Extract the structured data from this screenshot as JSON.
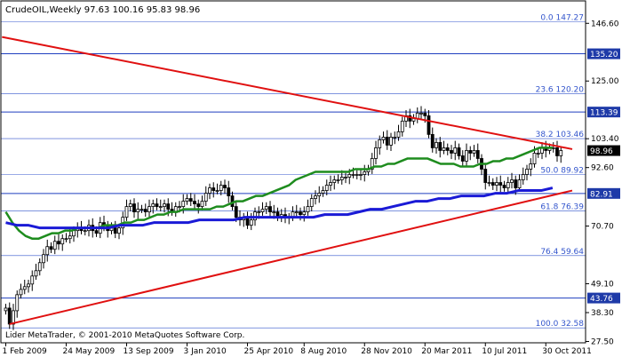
{
  "chart_data": {
    "type": "candlestick",
    "symbol_line": "CrudeOIL,Weekly  97.63 100.16 95.83 98.96",
    "copyright": "Lider MetaTrader, © 2001-2010 MetaQuotes Software Corp.",
    "ylim": [
      27.0,
      155.0
    ],
    "y_ticks": [
      146.6,
      125.0,
      103.4,
      92.6,
      70.7,
      49.1,
      38.3,
      27.5
    ],
    "x_tick_labels": [
      "1 Feb 2009",
      "24 May 2009",
      "13 Sep 2009",
      "3 Jan 2010",
      "25 Apr 2010",
      "8 Aug 2010",
      "28 Nov 2010",
      "20 Mar 2011",
      "10 Jul 2011",
      "30 Oct 2011"
    ],
    "x_tick_weeks": [
      0,
      16,
      32,
      48,
      64,
      79,
      95,
      111,
      127,
      143
    ],
    "horizontal_levels": [
      {
        "value": 135.2,
        "label": "135.20",
        "boxed": true
      },
      {
        "value": 113.39,
        "label": "113.39",
        "boxed": true
      },
      {
        "value": 82.91,
        "label": "82.91",
        "boxed": true
      },
      {
        "value": 43.76,
        "label": "43.76",
        "boxed": true
      }
    ],
    "price_badge": {
      "value": 98.96,
      "label": "98.96"
    },
    "fibonacci": [
      {
        "value": 147.27,
        "label": "0.0 147.27"
      },
      {
        "value": 120.2,
        "label": "23.6 120.20"
      },
      {
        "value": 103.46,
        "label": "38.2 103.46"
      },
      {
        "value": 89.92,
        "label": "50.0 89.92"
      },
      {
        "value": 76.39,
        "label": "61.8 76.39"
      },
      {
        "value": 59.64,
        "label": "76.4 59.64"
      },
      {
        "value": 32.58,
        "label": "100.0 32.58"
      }
    ],
    "close_series": [
      40,
      34,
      39,
      45,
      47,
      48,
      49,
      52,
      54,
      57,
      60,
      63,
      62,
      65,
      64,
      66,
      66,
      67,
      69,
      70,
      69,
      69,
      71,
      69,
      68,
      72,
      71,
      69,
      70,
      68,
      70,
      74,
      78,
      79,
      76,
      77,
      77,
      76,
      78,
      79,
      78,
      78,
      79,
      77,
      76,
      78,
      78,
      80,
      81,
      80,
      79,
      78,
      80,
      83,
      85,
      84,
      84,
      86,
      85,
      82,
      78,
      74,
      73,
      74,
      71,
      73,
      76,
      76,
      77,
      78,
      76,
      76,
      74,
      75,
      74,
      74,
      76,
      76,
      75,
      76,
      78,
      81,
      82,
      83,
      84,
      86,
      87,
      88,
      88,
      89,
      89,
      90,
      90,
      90,
      90,
      91,
      92,
      96,
      100,
      103,
      104,
      101,
      104,
      104,
      106,
      110,
      112,
      110,
      111,
      113,
      113,
      112,
      105,
      100,
      102,
      99,
      100,
      99,
      98,
      100,
      97,
      95,
      99,
      98,
      99,
      96,
      92,
      87,
      87,
      86,
      87,
      86,
      85,
      87,
      88,
      85,
      88,
      90,
      92,
      94,
      98,
      98,
      100,
      99,
      100,
      100,
      97,
      99
    ],
    "ma_green_series": [
      76,
      72,
      69,
      67,
      66,
      66,
      67,
      68,
      68,
      69,
      69,
      70,
      70,
      70,
      70,
      71,
      71,
      71,
      72,
      72,
      73,
      73,
      74,
      75,
      75,
      76,
      76,
      77,
      77,
      77,
      77,
      77,
      78,
      78,
      79,
      80,
      80,
      81,
      82,
      82,
      83,
      84,
      85,
      86,
      88,
      89,
      90,
      91,
      91,
      91,
      91,
      91,
      91,
      92,
      92,
      92,
      93,
      93,
      94,
      94,
      95,
      96,
      96,
      96,
      96,
      95,
      94,
      94,
      94,
      93,
      93,
      93,
      94,
      94,
      95,
      95,
      96,
      96,
      97,
      98,
      99,
      100,
      100,
      100
    ],
    "ma_blue_series": [
      72,
      71,
      71,
      70,
      70,
      70,
      70,
      70,
      70,
      70,
      71,
      71,
      71,
      72,
      72,
      72,
      72,
      73,
      73,
      73,
      73,
      74,
      74,
      74,
      74,
      74,
      74,
      74,
      75,
      75,
      75,
      76,
      77,
      77,
      78,
      79,
      80,
      80,
      81,
      81,
      82,
      82,
      82,
      83,
      83,
      84,
      84,
      84,
      85
    ],
    "trendlines": [
      {
        "name": "upper-resistance",
        "from": [
          -1,
          141.5
        ],
        "to": [
          150,
          99.5
        ]
      },
      {
        "name": "lower-support",
        "from": [
          1,
          34.0
        ],
        "to": [
          150,
          84.0
        ]
      }
    ],
    "colors": {
      "background": "#ffffff",
      "bull": "#000000",
      "bear": "#000000",
      "grid": "#1f3fbf",
      "fib": "#3355cc",
      "ma_green": "#1e8c1e",
      "ma_blue": "#1a1ad6",
      "trend": "#e01010",
      "badge_bg": "#1e3aa8",
      "price_badge_bg": "#000000"
    }
  }
}
